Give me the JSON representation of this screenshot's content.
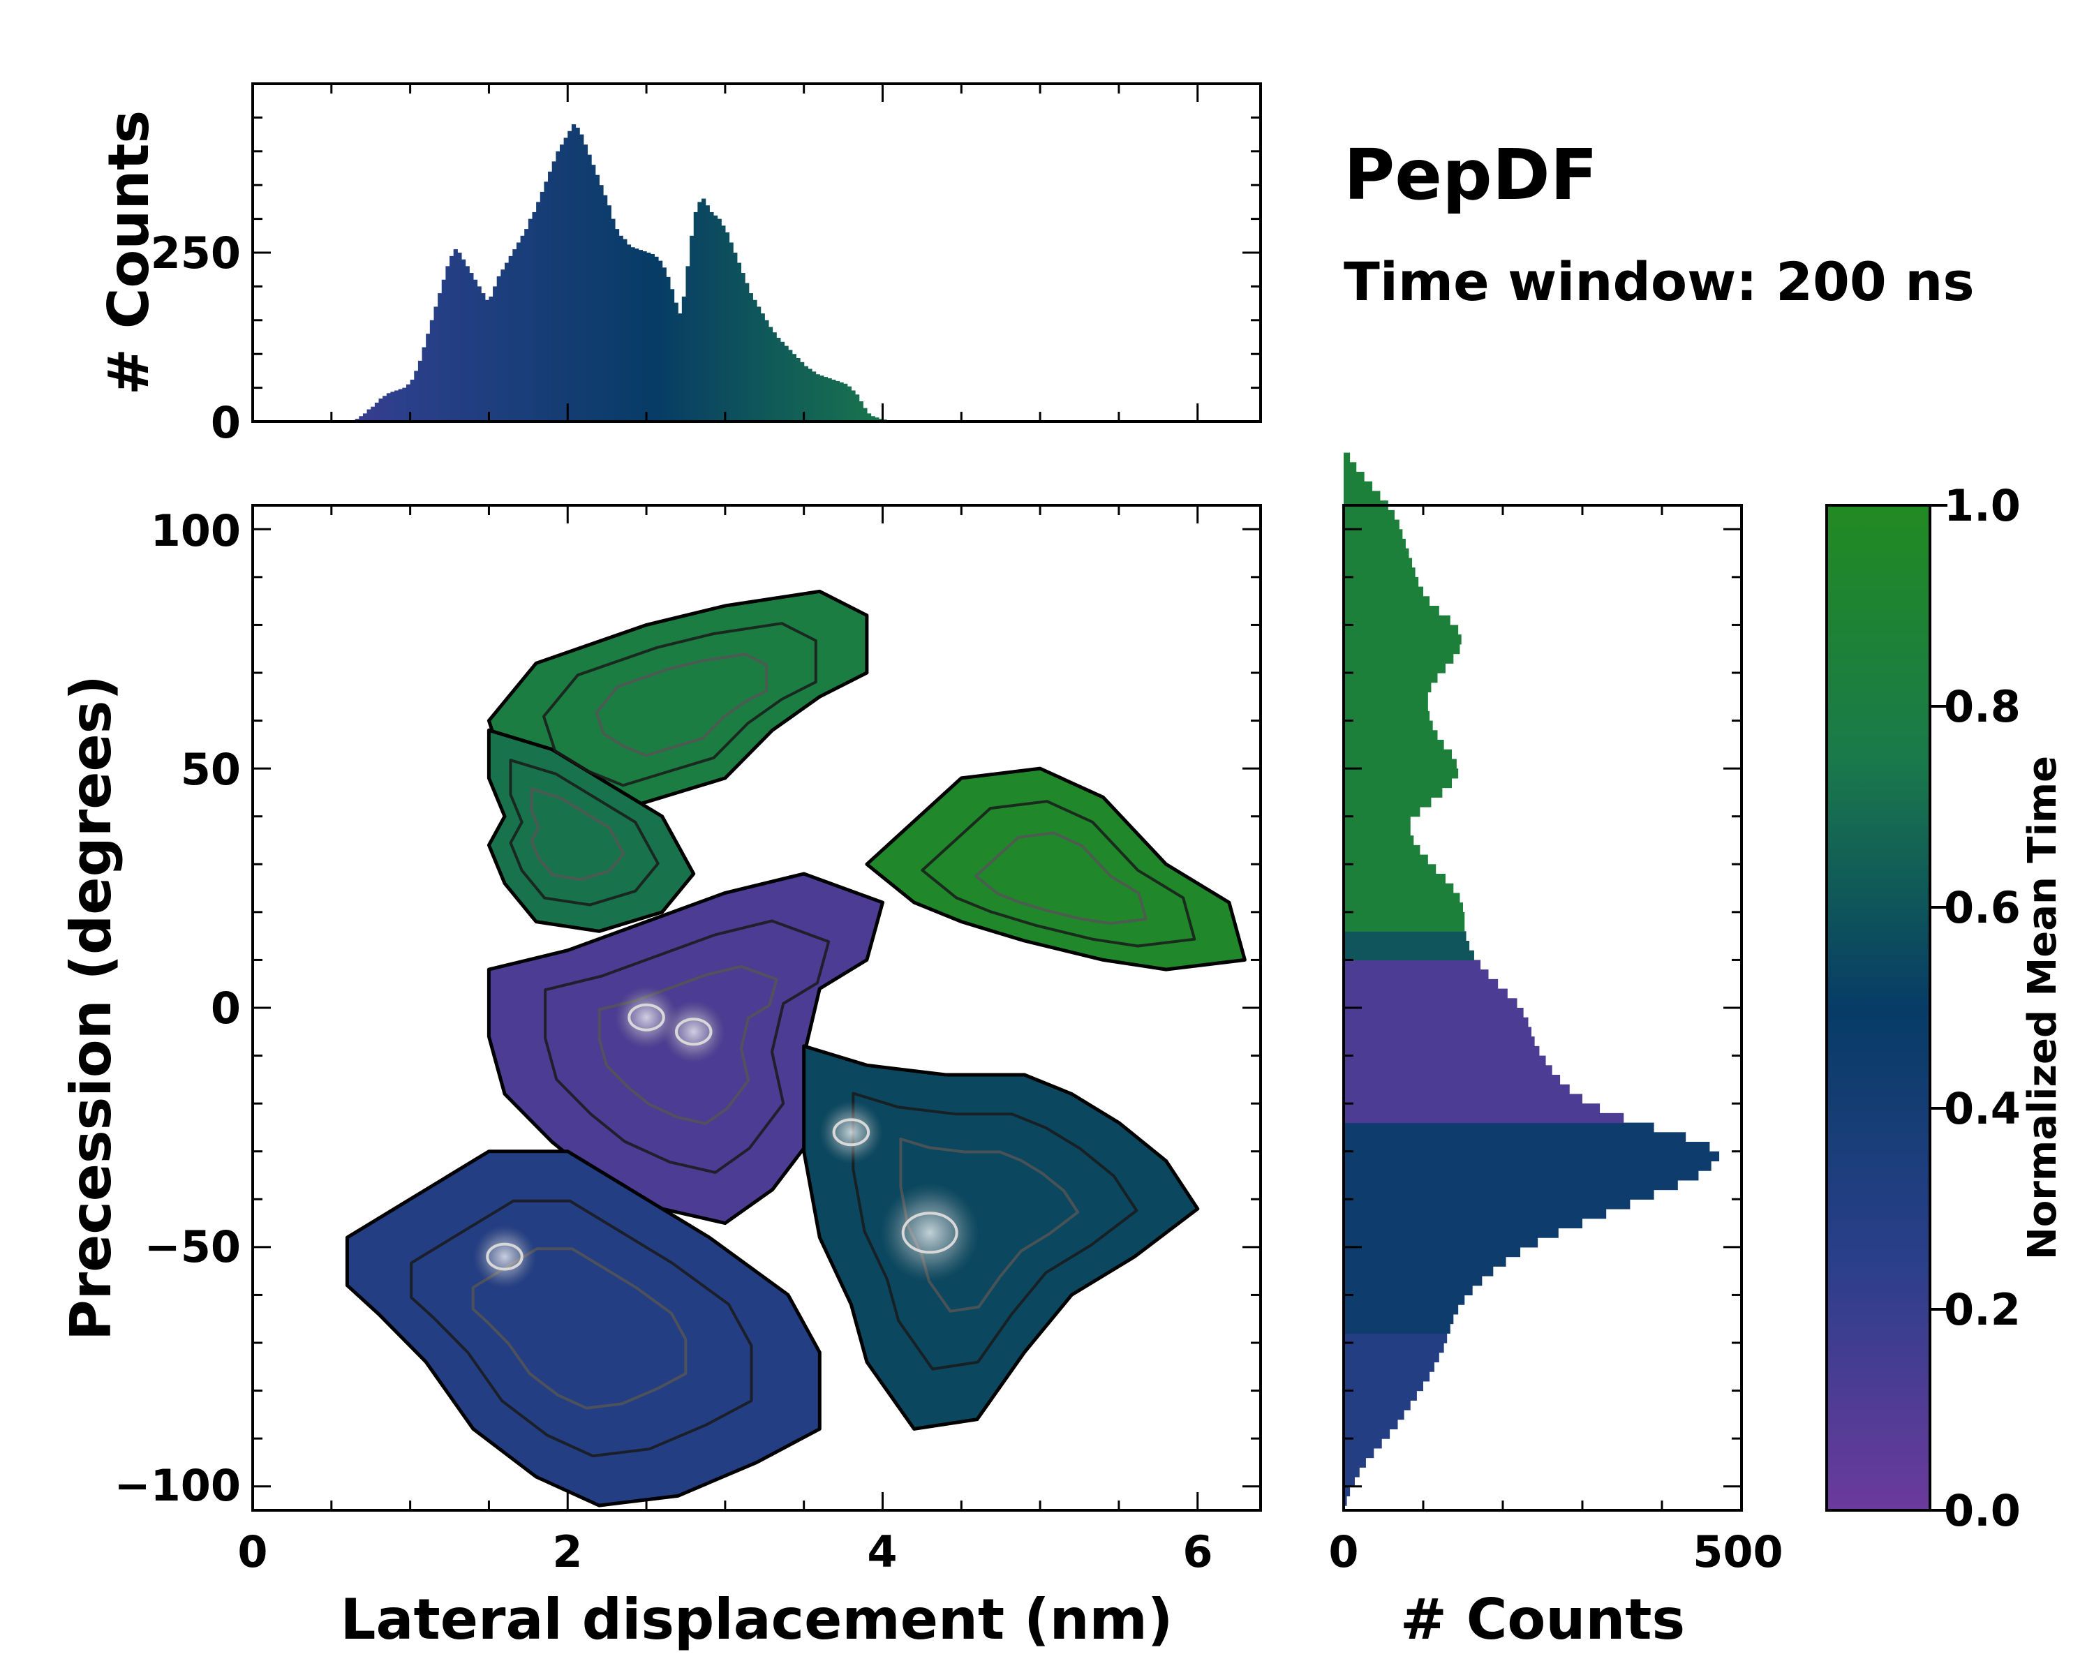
{
  "chart_data": {
    "type": "heatmap",
    "title": "PepDF",
    "subtitle": "Time window: 200 ns",
    "main": {
      "xlabel": "Lateral displacement (nm)",
      "ylabel": "Precession (degrees)",
      "xlim": [
        0,
        6.4
      ],
      "ylim": [
        -105,
        105
      ],
      "xticks": [
        0,
        2,
        4,
        6
      ],
      "xtick_labels": [
        "0",
        "2",
        "4",
        "6"
      ],
      "yticks": [
        -100,
        -50,
        0,
        50,
        100
      ],
      "ytick_labels": [
        "−100",
        "−50",
        "0",
        "50",
        "100"
      ],
      "regions": [
        {
          "name": "upper-green-lobe",
          "time": 0.8,
          "points": [
            [
              1.8,
              72
            ],
            [
              2.5,
              80
            ],
            [
              3.0,
              84
            ],
            [
              3.6,
              87
            ],
            [
              3.9,
              82
            ],
            [
              3.9,
              70
            ],
            [
              3.6,
              65
            ],
            [
              3.3,
              58
            ],
            [
              3.0,
              48
            ],
            [
              2.6,
              44
            ],
            [
              2.2,
              40
            ],
            [
              1.9,
              44
            ],
            [
              1.6,
              50
            ],
            [
              1.5,
              60
            ]
          ]
        },
        {
          "name": "left-green-lobe",
          "time": 0.72,
          "points": [
            [
              1.5,
              58
            ],
            [
              1.9,
              54
            ],
            [
              2.3,
              46
            ],
            [
              2.6,
              40
            ],
            [
              2.8,
              28
            ],
            [
              2.6,
              20
            ],
            [
              2.2,
              16
            ],
            [
              1.8,
              18
            ],
            [
              1.6,
              26
            ],
            [
              1.5,
              34
            ],
            [
              1.6,
              40
            ],
            [
              1.5,
              48
            ]
          ]
        },
        {
          "name": "purple-center-lobe",
          "time": 0.12,
          "points": [
            [
              1.5,
              8
            ],
            [
              2.0,
              12
            ],
            [
              2.5,
              18
            ],
            [
              3.0,
              24
            ],
            [
              3.5,
              28
            ],
            [
              4.0,
              22
            ],
            [
              3.9,
              10
            ],
            [
              3.6,
              4
            ],
            [
              3.5,
              -10
            ],
            [
              3.6,
              -25
            ],
            [
              3.3,
              -38
            ],
            [
              3.0,
              -45
            ],
            [
              2.6,
              -42
            ],
            [
              2.2,
              -36
            ],
            [
              1.9,
              -28
            ],
            [
              1.6,
              -18
            ],
            [
              1.5,
              -6
            ]
          ]
        },
        {
          "name": "right-green-lobe",
          "time": 0.95,
          "points": [
            [
              3.9,
              30
            ],
            [
              4.5,
              48
            ],
            [
              5.0,
              50
            ],
            [
              5.4,
              44
            ],
            [
              5.8,
              30
            ],
            [
              6.2,
              22
            ],
            [
              6.3,
              10
            ],
            [
              5.8,
              8
            ],
            [
              5.4,
              10
            ],
            [
              4.9,
              14
            ],
            [
              4.5,
              18
            ],
            [
              4.2,
              22
            ]
          ]
        },
        {
          "name": "lower-left-blue-lobe",
          "time": 0.3,
          "points": [
            [
              0.6,
              -48
            ],
            [
              1.0,
              -40
            ],
            [
              1.5,
              -30
            ],
            [
              2.0,
              -30
            ],
            [
              2.5,
              -40
            ],
            [
              2.9,
              -48
            ],
            [
              3.4,
              -60
            ],
            [
              3.6,
              -72
            ],
            [
              3.6,
              -88
            ],
            [
              3.2,
              -95
            ],
            [
              2.7,
              -102
            ],
            [
              2.2,
              -104
            ],
            [
              1.8,
              -98
            ],
            [
              1.4,
              -88
            ],
            [
              1.1,
              -74
            ],
            [
              0.8,
              -64
            ],
            [
              0.6,
              -58
            ]
          ]
        },
        {
          "name": "lower-right-teal-lobe",
          "time": 0.55,
          "points": [
            [
              3.5,
              -8
            ],
            [
              3.9,
              -12
            ],
            [
              4.4,
              -14
            ],
            [
              4.9,
              -14
            ],
            [
              5.2,
              -18
            ],
            [
              5.5,
              -24
            ],
            [
              5.8,
              -32
            ],
            [
              6.0,
              -42
            ],
            [
              5.6,
              -52
            ],
            [
              5.2,
              -60
            ],
            [
              4.9,
              -72
            ],
            [
              4.6,
              -86
            ],
            [
              4.2,
              -88
            ],
            [
              3.9,
              -74
            ],
            [
              3.8,
              -62
            ],
            [
              3.6,
              -48
            ],
            [
              3.5,
              -30
            ]
          ]
        }
      ],
      "hotspots": [
        [
          4.3,
          -47
        ],
        [
          2.8,
          -5
        ],
        [
          3.8,
          -26
        ],
        [
          1.6,
          -52
        ],
        [
          2.5,
          -2
        ]
      ]
    },
    "top_histogram": {
      "ylabel": "# Counts",
      "ylim": [
        0,
        500
      ],
      "yticks": [
        0,
        250
      ],
      "ytick_labels": [
        "0",
        "250"
      ],
      "bin_start": 0.65,
      "bin_width": 0.025,
      "counts": [
        4,
        8,
        12,
        18,
        22,
        28,
        34,
        38,
        42,
        44,
        46,
        48,
        50,
        55,
        62,
        75,
        90,
        110,
        130,
        150,
        170,
        190,
        210,
        230,
        245,
        255,
        250,
        240,
        230,
        220,
        210,
        200,
        190,
        180,
        185,
        200,
        215,
        225,
        235,
        245,
        255,
        265,
        275,
        285,
        300,
        310,
        325,
        340,
        355,
        370,
        385,
        400,
        410,
        420,
        430,
        440,
        435,
        425,
        410,
        395,
        380,
        365,
        350,
        335,
        320,
        300,
        285,
        275,
        270,
        262,
        258,
        256,
        254,
        252,
        250,
        248,
        244,
        238,
        228,
        214,
        196,
        176,
        160,
        185,
        230,
        275,
        310,
        325,
        330,
        320,
        310,
        305,
        300,
        290,
        280,
        265,
        250,
        235,
        220,
        205,
        190,
        180,
        170,
        160,
        150,
        140,
        132,
        124,
        118,
        112,
        106,
        100,
        94,
        88,
        82,
        78,
        74,
        70,
        68,
        66,
        64,
        62,
        60,
        58,
        56,
        52,
        46,
        40,
        30,
        20,
        12,
        8,
        6,
        4,
        3,
        2
      ]
    },
    "right_histogram": {
      "xlabel": "# Counts",
      "xlim": [
        0,
        500
      ],
      "xticks": [
        0,
        500
      ],
      "xtick_labels": [
        "0",
        "500"
      ],
      "bin_start": -104,
      "bin_width": 2,
      "counts": [
        4,
        8,
        14,
        20,
        28,
        38,
        48,
        58,
        68,
        76,
        84,
        92,
        100,
        108,
        114,
        120,
        126,
        130,
        134,
        138,
        144,
        152,
        162,
        174,
        188,
        204,
        222,
        244,
        270,
        300,
        330,
        360,
        390,
        420,
        446,
        462,
        472,
        460,
        430,
        390,
        352,
        322,
        300,
        284,
        272,
        262,
        254,
        246,
        240,
        236,
        232,
        226,
        218,
        206,
        194,
        182,
        172,
        164,
        158,
        154,
        152,
        152,
        150,
        146,
        138,
        128,
        116,
        106,
        96,
        88,
        84,
        84,
        96,
        110,
        124,
        136,
        144,
        142,
        136,
        126,
        118,
        112,
        108,
        106,
        106,
        110,
        118,
        128,
        138,
        146,
        148,
        144,
        134,
        120,
        108,
        100,
        94,
        90,
        86,
        82,
        78,
        74,
        70,
        64,
        56,
        46,
        36,
        26,
        16,
        8
      ]
    },
    "colorbar": {
      "label": "Normalized Mean Time",
      "range": [
        0.0,
        1.0
      ],
      "ticks": [
        0.0,
        0.2,
        0.4,
        0.6,
        0.8,
        1.0
      ],
      "tick_labels": [
        "0.0",
        "0.2",
        "0.4",
        "0.6",
        "0.8",
        "1.0"
      ],
      "colors": [
        "#6b3a9c",
        "#2a3f8a",
        "#073c66",
        "#1a7a4a",
        "#228a22"
      ]
    }
  }
}
